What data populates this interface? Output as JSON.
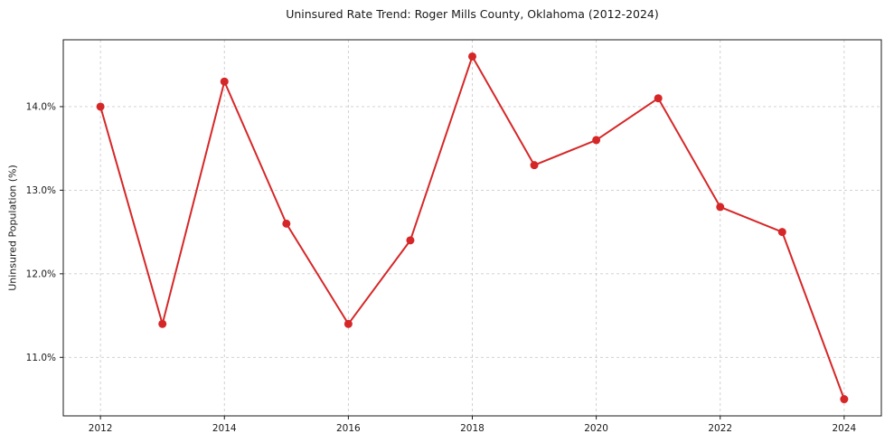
{
  "chart": {
    "title": "Uninsured Rate Trend: Roger Mills County, Oklahoma (2012-2024)",
    "ylabel": "Uninsured Population (%)"
  },
  "chart_data": {
    "type": "line",
    "title": "Uninsured Rate Trend: Roger Mills County, Oklahoma (2012-2024)",
    "xlabel": "",
    "ylabel": "Uninsured Population (%)",
    "x": [
      2012,
      2013,
      2014,
      2015,
      2016,
      2017,
      2018,
      2019,
      2020,
      2021,
      2022,
      2023,
      2024
    ],
    "y": [
      14.0,
      11.4,
      14.3,
      12.6,
      11.4,
      12.4,
      14.6,
      13.3,
      13.6,
      14.1,
      12.8,
      12.5,
      10.5
    ],
    "xlim": [
      2011.4,
      2024.6
    ],
    "ylim": [
      10.3,
      14.8
    ],
    "x_ticks": [
      2012,
      2014,
      2016,
      2018,
      2020,
      2022,
      2024
    ],
    "x_tick_labels": [
      "2012",
      "2014",
      "2016",
      "2018",
      "2020",
      "2022",
      "2024"
    ],
    "y_ticks": [
      11.0,
      12.0,
      13.0,
      14.0
    ],
    "y_tick_labels": [
      "11.0%",
      "12.0%",
      "13.0%",
      "14.0%"
    ],
    "line_color": "#d62728",
    "marker": "circle",
    "grid": true,
    "grid_style": "dashed",
    "grid_color": "#cccccc",
    "axis_color": "#1a1a1a",
    "legend": "none"
  }
}
